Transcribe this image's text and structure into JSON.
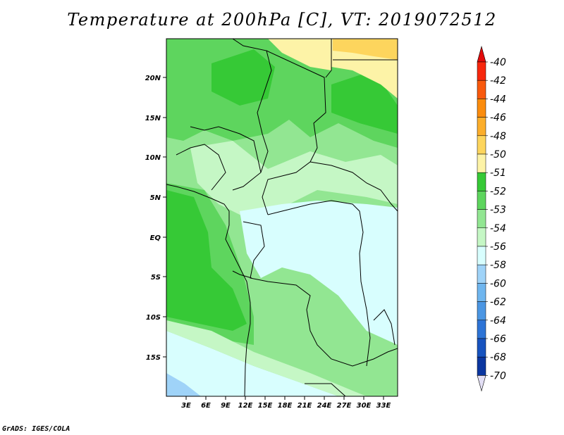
{
  "title": "Temperature at 200hPa [C], VT: 2019072512",
  "credit": "GrADS: IGES/COLA",
  "map": {
    "lat_labels": [
      "20N",
      "15N",
      "10N",
      "5N",
      "EQ",
      "5S",
      "10S",
      "15S"
    ],
    "lon_labels": [
      "3E",
      "6E",
      "9E",
      "12E",
      "15E",
      "18E",
      "21E",
      "24E",
      "27E",
      "30E",
      "33E"
    ]
  },
  "legend": {
    "labels": [
      "-40",
      "-42",
      "-44",
      "-46",
      "-48",
      "-50",
      "-51",
      "-52",
      "-53",
      "-54",
      "-56",
      "-58",
      "-60",
      "-62",
      "-64",
      "-66",
      "-68",
      "-70"
    ],
    "colors": [
      "#f7270d",
      "#f9590d",
      "#fb8c0d",
      "#fcae2b",
      "#fdd55d",
      "#fdf3a7",
      "#36c936",
      "#5ed55e",
      "#92e692",
      "#c5f7c5",
      "#d8fefe",
      "#9fd3f8",
      "#6fb6ef",
      "#4b96e3",
      "#2d74d6",
      "#1753bf",
      "#0b36a0",
      "#04127a"
    ],
    "top_arrow_color": "#e20a0a",
    "bottom_arrow_color": "#e3dff5"
  }
}
